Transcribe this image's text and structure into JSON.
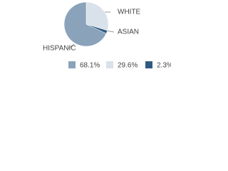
{
  "chart_data": {
    "type": "pie",
    "categories": [
      "HISPANIC",
      "WHITE",
      "ASIAN"
    ],
    "values": [
      68.1,
      29.6,
      2.3
    ],
    "value_labels": [
      "68.1%",
      "29.6%",
      "2.3%"
    ],
    "colors": [
      "#8aa3bb",
      "#d9e1ea",
      "#2e5a80"
    ]
  }
}
